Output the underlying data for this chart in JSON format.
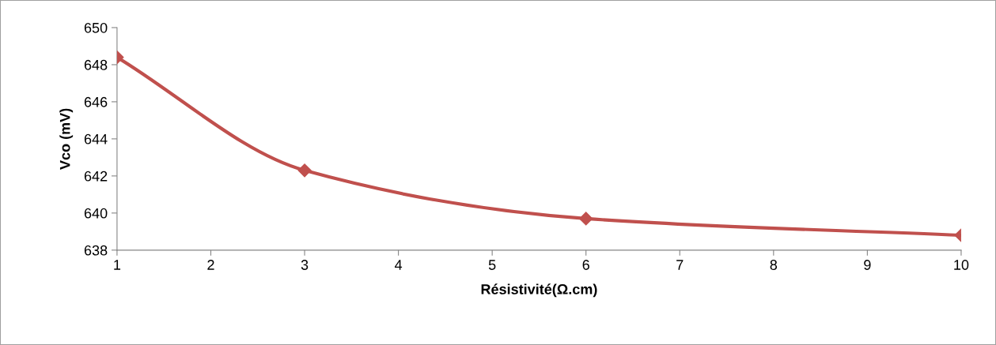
{
  "chart_data": {
    "type": "line",
    "xlabel": "Résistivité(Ω.cm)",
    "ylabel": "Vco (mV)",
    "series": [
      {
        "color": "#c0504d",
        "x": [
          1,
          3,
          6,
          10
        ],
        "values": [
          648.4,
          642.3,
          639.7,
          638.8
        ]
      }
    ],
    "xlim": [
      1,
      10
    ],
    "xticks": [
      1,
      2,
      3,
      4,
      5,
      6,
      7,
      8,
      9,
      10
    ],
    "ylim": [
      638,
      650
    ],
    "yticks": [
      638,
      640,
      642,
      644,
      646,
      648,
      650
    ],
    "marker": "diamond",
    "line_style": "solid",
    "grid": false,
    "legend": false
  }
}
